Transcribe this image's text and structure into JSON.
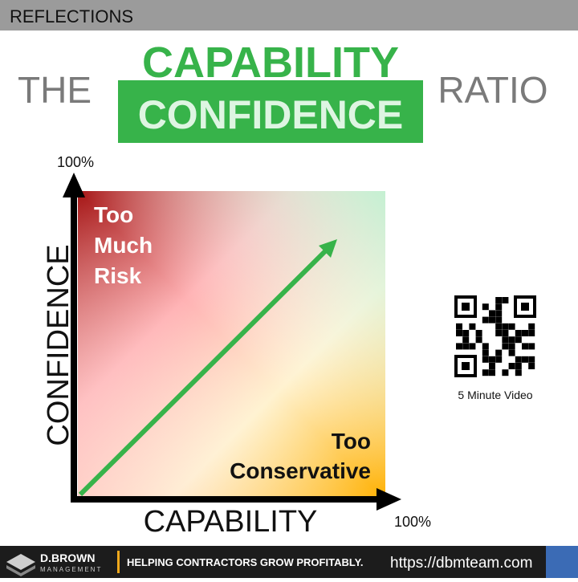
{
  "header": {
    "title": "REFLECTIONS"
  },
  "headline": {
    "left": "THE",
    "top": "CAPABILITY",
    "box": "CONFIDENCE",
    "right": "RATIO"
  },
  "diagram": {
    "y_max_label": "100%",
    "y_axis_label": "CONFIDENCE",
    "x_axis_label": "CAPABILITY",
    "x_max_label": "100%",
    "risk_label": [
      "Too",
      "Much",
      "Risk"
    ],
    "conservative_label": [
      "Too",
      "Conservative"
    ]
  },
  "qr": {
    "caption": "5 Minute Video"
  },
  "footer": {
    "brand": "D.BROWN",
    "brand_sub": "MANAGEMENT",
    "tagline": "HELPING CONTRACTORS GROW PROFITABLY.",
    "url": "https://dbmteam.com"
  }
}
